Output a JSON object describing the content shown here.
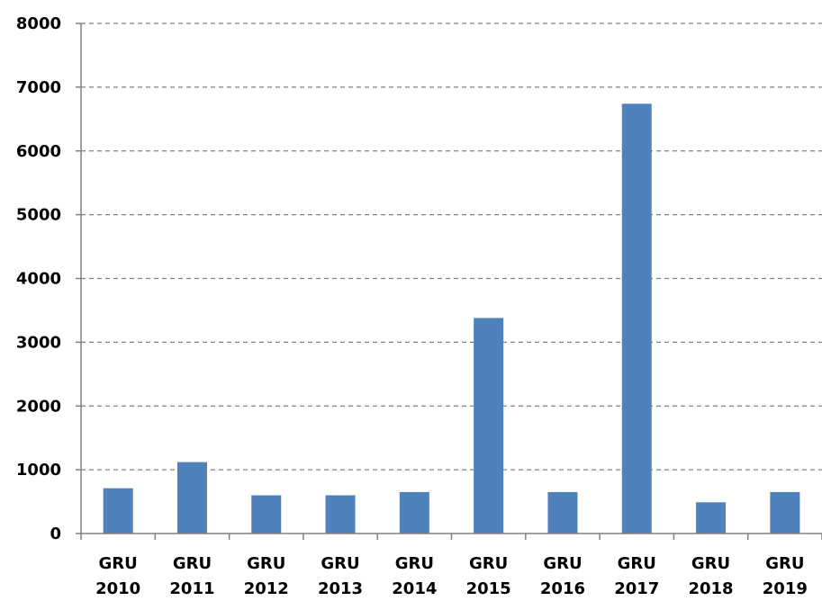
{
  "chart_data": {
    "type": "bar",
    "title": "",
    "xlabel": "",
    "ylabel": "",
    "categories": [
      [
        "GRU",
        "2010"
      ],
      [
        "GRU",
        "2011"
      ],
      [
        "GRU",
        "2012"
      ],
      [
        "GRU",
        "2013"
      ],
      [
        "GRU",
        "2014"
      ],
      [
        "GRU",
        "2015"
      ],
      [
        "GRU",
        "2016"
      ],
      [
        "GRU",
        "2017"
      ],
      [
        "GRU",
        "2018"
      ],
      [
        "GRU",
        "2019"
      ]
    ],
    "values": [
      710,
      1120,
      600,
      600,
      650,
      3380,
      650,
      6740,
      490,
      650
    ],
    "ylim": [
      0,
      8000
    ],
    "yticks": [
      "0",
      "1000",
      "2000",
      "3000",
      "4000",
      "5000",
      "6000",
      "7000",
      "8000"
    ],
    "grid": true,
    "legend": "none",
    "bar_color": "#4F81BD"
  }
}
